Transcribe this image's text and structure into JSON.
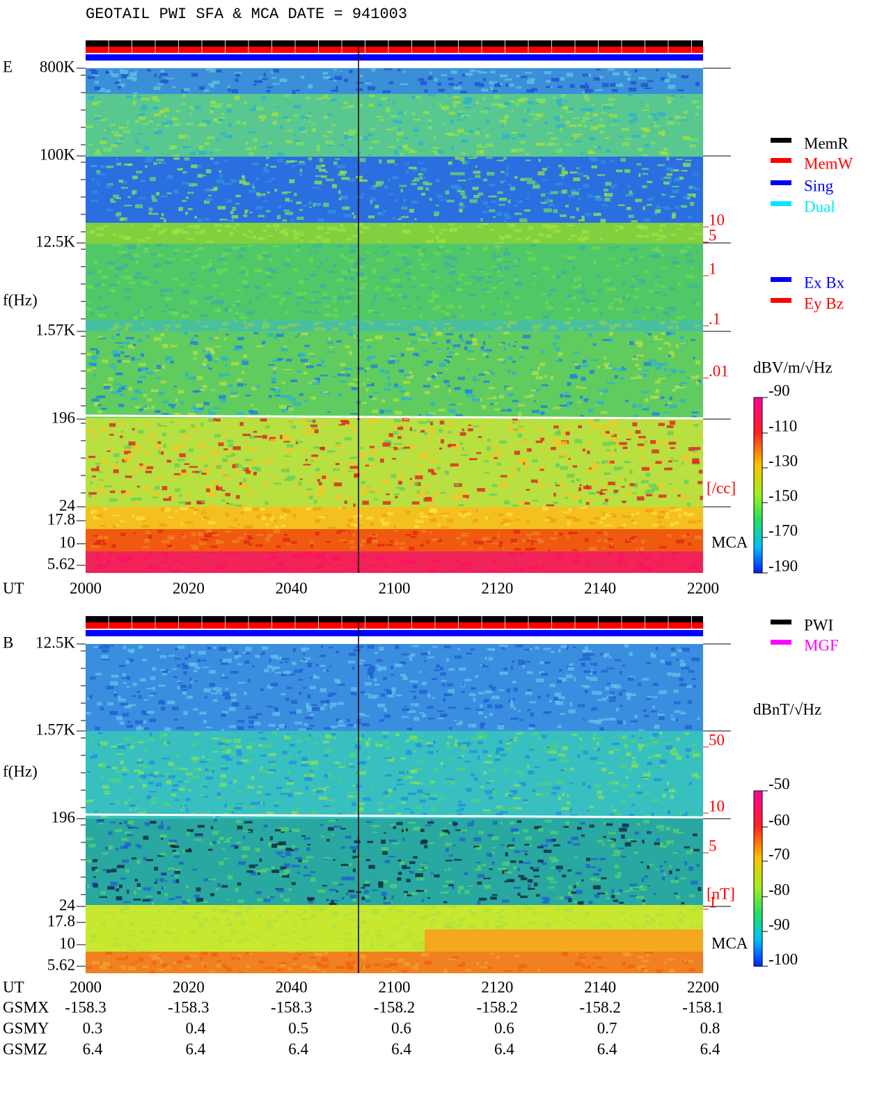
{
  "title": "GEOTAIL  PWI SFA & MCA   DATE = 941003",
  "panels": [
    {
      "label": "E",
      "freq_label": "f(Hz)",
      "freq_ticks": [
        "800K",
        "100K",
        "12.5K",
        "1.57K",
        "196",
        "24",
        "17.8",
        "10",
        "5.62"
      ],
      "density_ticks": [
        "10",
        "5",
        "1",
        ".1",
        ".01"
      ],
      "density_unit": "[/cc]",
      "mca": "MCA",
      "time_label": "UT",
      "time_ticks": [
        "2000",
        "2020",
        "2040",
        "2100",
        "2120",
        "2140",
        "2200"
      ],
      "colorbar_unit": "dBV/m/√Hz",
      "colorbar_ticks": [
        "-90",
        "-110",
        "-130",
        "-150",
        "-170",
        "-190"
      ],
      "legend": [
        {
          "name": "MemR",
          "color": "#000000"
        },
        {
          "name": "MemW",
          "color": "#ff0000"
        },
        {
          "name": "Sing",
          "color": "#0000ff"
        },
        {
          "name": "Dual",
          "color": "#00e8ff"
        }
      ],
      "legend2": [
        {
          "name": "Ex Bx",
          "color": "#0000ff"
        },
        {
          "name": "Ey Bz",
          "color": "#ff0000"
        }
      ]
    },
    {
      "label": "B",
      "freq_label": "f(Hz)",
      "freq_ticks": [
        "12.5K",
        "1.57K",
        "196",
        "24",
        "17.8",
        "10",
        "5.62"
      ],
      "density_ticks": [
        "50",
        "10",
        "5",
        "1"
      ],
      "density_unit": "[nT]",
      "mca": "MCA",
      "time_label": "UT",
      "time_ticks": [
        "2000",
        "2020",
        "2040",
        "2100",
        "2120",
        "2140",
        "2200"
      ],
      "colorbar_unit": "dBnT/√Hz",
      "colorbar_ticks": [
        "-50",
        "-60",
        "-70",
        "-80",
        "-90",
        "-100"
      ],
      "legend": [
        {
          "name": "PWI",
          "color": "#000000"
        },
        {
          "name": "MGF",
          "color": "#ff00ff"
        }
      ]
    }
  ],
  "orbit": [
    {
      "name": "GSMX",
      "values": [
        -158.3,
        -158.3,
        -158.3,
        -158.2,
        -158.2,
        -158.2,
        -158.1
      ]
    },
    {
      "name": "GSMY",
      "values": [
        0.3,
        0.4,
        0.5,
        0.6,
        0.6,
        0.7,
        0.8
      ]
    },
    {
      "name": "GSMZ",
      "values": [
        6.4,
        6.4,
        6.4,
        6.4,
        6.4,
        6.4,
        6.4
      ]
    }
  ]
}
